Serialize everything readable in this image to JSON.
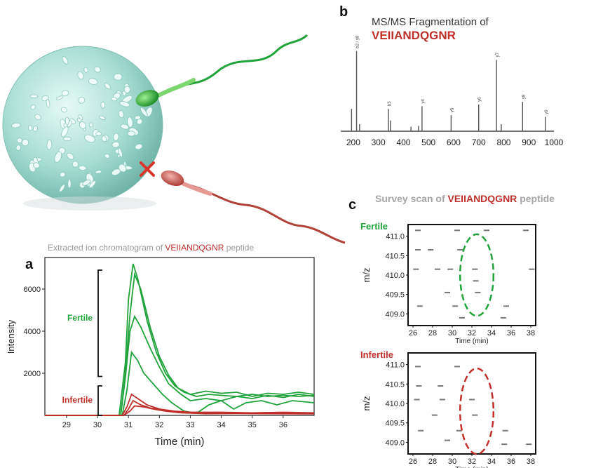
{
  "panels": {
    "a_letter": "a",
    "b_letter": "b",
    "c_letter": "c"
  },
  "titles": {
    "eic_prefix": "Extracted ion chromatogram of",
    "eic_peptide": "VEIIANDQGNR",
    "eic_suffix": "peptide",
    "msms_line1": "MS/MS Fragmentation of",
    "msms_peptide": "VEIIANDQGNR",
    "survey_prefix": "Survey scan of",
    "survey_peptide": "VEIIANDQGNR",
    "survey_suffix": "peptide"
  },
  "groups": {
    "fertile": "Fertile",
    "infertile": "Infertile"
  },
  "colors": {
    "fertile": "#1fa33a",
    "infertile": "#c0302b",
    "peptide_text": "#c0302b",
    "title_gray": "#9a9a9a"
  },
  "chart_data": [
    {
      "id": "a",
      "type": "line",
      "xlabel": "Time (min)",
      "ylabel": "Intensity",
      "xlim": [
        28.3,
        37
      ],
      "ylim": [
        0,
        7500
      ],
      "xticks": [
        29,
        30,
        31,
        32,
        33,
        34,
        35,
        36
      ],
      "yticks": [
        2000,
        4000,
        6000
      ],
      "series": [
        {
          "group": "fertile",
          "points": [
            [
              28.3,
              0
            ],
            [
              30.7,
              0
            ],
            [
              30.9,
              2500
            ],
            [
              31.0,
              5500
            ],
            [
              31.15,
              7200
            ],
            [
              31.3,
              6500
            ],
            [
              31.6,
              4500
            ],
            [
              31.9,
              3000
            ],
            [
              32.2,
              2000
            ],
            [
              32.5,
              1400
            ],
            [
              32.8,
              1100
            ],
            [
              33.2,
              900
            ],
            [
              33.6,
              1000
            ],
            [
              34.0,
              950
            ],
            [
              34.5,
              900
            ],
            [
              35.0,
              1000
            ],
            [
              35.5,
              900
            ],
            [
              36.0,
              950
            ],
            [
              36.5,
              900
            ],
            [
              37,
              950
            ]
          ]
        },
        {
          "group": "fertile",
          "points": [
            [
              28.3,
              0
            ],
            [
              30.75,
              0
            ],
            [
              30.9,
              2000
            ],
            [
              31.05,
              4800
            ],
            [
              31.2,
              6700
            ],
            [
              31.4,
              6000
            ],
            [
              31.7,
              4200
            ],
            [
              32.0,
              2800
            ],
            [
              32.3,
              1900
            ],
            [
              32.6,
              1300
            ],
            [
              33.0,
              1000
            ],
            [
              33.5,
              1150
            ],
            [
              34.0,
              1050
            ],
            [
              34.5,
              1100
            ],
            [
              35.0,
              900
            ],
            [
              35.5,
              1050
            ],
            [
              36.0,
              1000
            ],
            [
              36.5,
              1100
            ],
            [
              37,
              1000
            ]
          ]
        },
        {
          "group": "fertile",
          "points": [
            [
              28.3,
              0
            ],
            [
              30.75,
              0
            ],
            [
              30.9,
              1800
            ],
            [
              31.05,
              4000
            ],
            [
              31.2,
              4700
            ],
            [
              31.4,
              4200
            ],
            [
              31.7,
              3200
            ],
            [
              32.0,
              2300
            ],
            [
              32.3,
              1500
            ],
            [
              32.7,
              1000
            ],
            [
              33.0,
              700
            ],
            [
              33.5,
              800
            ],
            [
              34.0,
              700
            ],
            [
              34.5,
              900
            ],
            [
              35.0,
              800
            ],
            [
              35.5,
              950
            ],
            [
              36.0,
              850
            ],
            [
              36.5,
              1000
            ],
            [
              37,
              900
            ]
          ]
        },
        {
          "group": "fertile",
          "points": [
            [
              28.3,
              0
            ],
            [
              30.8,
              0
            ],
            [
              30.95,
              1200
            ],
            [
              31.1,
              3000
            ],
            [
              31.3,
              2600
            ],
            [
              31.5,
              2000
            ],
            [
              31.8,
              1500
            ],
            [
              32.1,
              1000
            ],
            [
              32.4,
              600
            ],
            [
              32.8,
              200
            ],
            [
              33.2,
              100
            ],
            [
              33.6,
              500
            ],
            [
              34.0,
              700
            ],
            [
              34.4,
              300
            ],
            [
              34.8,
              600
            ],
            [
              35.3,
              700
            ],
            [
              35.8,
              500
            ],
            [
              36.3,
              700
            ],
            [
              37,
              600
            ]
          ]
        },
        {
          "group": "infertile",
          "points": [
            [
              28.3,
              0
            ],
            [
              30.8,
              0
            ],
            [
              30.95,
              400
            ],
            [
              31.1,
              1000
            ],
            [
              31.3,
              800
            ],
            [
              31.6,
              500
            ],
            [
              32.0,
              300
            ],
            [
              32.5,
              200
            ],
            [
              33.0,
              150
            ],
            [
              34.0,
              150
            ],
            [
              35.0,
              120
            ],
            [
              36.0,
              150
            ],
            [
              37,
              120
            ]
          ]
        },
        {
          "group": "infertile",
          "points": [
            [
              28.3,
              0
            ],
            [
              30.85,
              0
            ],
            [
              31.0,
              300
            ],
            [
              31.15,
              700
            ],
            [
              31.4,
              500
            ],
            [
              31.7,
              350
            ],
            [
              32.1,
              250
            ],
            [
              32.6,
              150
            ],
            [
              33.2,
              120
            ],
            [
              34.0,
              100
            ],
            [
              35.0,
              120
            ],
            [
              36.0,
              100
            ],
            [
              37,
              100
            ]
          ]
        },
        {
          "group": "infertile",
          "points": [
            [
              28.3,
              0
            ],
            [
              30.85,
              0
            ],
            [
              31.05,
              200
            ],
            [
              31.2,
              450
            ],
            [
              31.5,
              400
            ],
            [
              31.8,
              300
            ],
            [
              32.2,
              200
            ],
            [
              32.7,
              120
            ],
            [
              33.5,
              80
            ],
            [
              34.5,
              90
            ],
            [
              35.5,
              80
            ],
            [
              37,
              70
            ]
          ]
        }
      ]
    },
    {
      "id": "b",
      "type": "bar",
      "xlim": [
        150,
        1000
      ],
      "xticks": [
        200,
        300,
        400,
        500,
        600,
        700,
        800,
        900,
        1000
      ],
      "peaks": [
        {
          "mz": 193,
          "rel": 0.25
        },
        {
          "mz": 213,
          "rel": 0.9,
          "label": "b2 / y8"
        },
        {
          "mz": 225,
          "rel": 0.08
        },
        {
          "mz": 340,
          "rel": 0.25,
          "label": "b3"
        },
        {
          "mz": 348,
          "rel": 0.12
        },
        {
          "mz": 430,
          "rel": 0.05
        },
        {
          "mz": 460,
          "rel": 0.06
        },
        {
          "mz": 474,
          "rel": 0.28,
          "label": "y4"
        },
        {
          "mz": 590,
          "rel": 0.18,
          "label": "y5"
        },
        {
          "mz": 700,
          "rel": 0.3,
          "label": "y6"
        },
        {
          "mz": 771,
          "rel": 0.8,
          "label": "y7"
        },
        {
          "mz": 790,
          "rel": 0.08
        },
        {
          "mz": 875,
          "rel": 0.33,
          "label": "y8"
        },
        {
          "mz": 966,
          "rel": 0.16,
          "label": "y9"
        }
      ]
    },
    {
      "id": "c_fertile",
      "type": "heatmap",
      "xlabel": "Time (min)",
      "ylabel": "m/z",
      "xlim": [
        25.5,
        38.5
      ],
      "ylim": [
        408.7,
        411.3
      ],
      "xticks": [
        26,
        28,
        30,
        32,
        34,
        36,
        38
      ],
      "yticks": [
        409.0,
        409.5,
        410.0,
        410.5,
        411.0
      ],
      "marks": [
        {
          "t": 26.5,
          "mz": 411.15
        },
        {
          "t": 30.5,
          "mz": 411.15
        },
        {
          "t": 33.5,
          "mz": 411.15
        },
        {
          "t": 37.5,
          "mz": 411.15
        },
        {
          "t": 26.5,
          "mz": 410.65
        },
        {
          "t": 27.8,
          "mz": 410.65
        },
        {
          "t": 30.8,
          "mz": 410.65
        },
        {
          "t": 26.3,
          "mz": 410.15
        },
        {
          "t": 28.5,
          "mz": 410.15
        },
        {
          "t": 29.8,
          "mz": 410.15
        },
        {
          "t": 32.3,
          "mz": 410.15
        },
        {
          "t": 38.1,
          "mz": 410.15
        },
        {
          "t": 32.4,
          "mz": 409.85
        },
        {
          "t": 32.6,
          "mz": 409.55
        },
        {
          "t": 29.5,
          "mz": 409.55
        },
        {
          "t": 26.7,
          "mz": 409.2
        },
        {
          "t": 30.3,
          "mz": 409.2
        },
        {
          "t": 35.5,
          "mz": 409.2
        },
        {
          "t": 31.0,
          "mz": 408.9
        },
        {
          "t": 35.2,
          "mz": 408.9
        }
      ],
      "highlight": {
        "t": 32.5,
        "mz": 410.0,
        "t_radius": 1.7,
        "mz_radius": 1.05,
        "group": "fertile"
      }
    },
    {
      "id": "c_infertile",
      "type": "heatmap",
      "xlabel": "Time (min)",
      "ylabel": "m/z",
      "xlim": [
        25.5,
        38.5
      ],
      "ylim": [
        408.7,
        411.3
      ],
      "xticks": [
        26,
        28,
        30,
        32,
        34,
        36,
        38
      ],
      "yticks": [
        409.0,
        409.5,
        410.0,
        410.5,
        411.0
      ],
      "marks": [
        {
          "t": 26.5,
          "mz": 410.95
        },
        {
          "t": 30.5,
          "mz": 410.95
        },
        {
          "t": 26.6,
          "mz": 410.45
        },
        {
          "t": 28.8,
          "mz": 410.45
        },
        {
          "t": 26.4,
          "mz": 410.1
        },
        {
          "t": 29.0,
          "mz": 410.1
        },
        {
          "t": 32.0,
          "mz": 410.1
        },
        {
          "t": 32.3,
          "mz": 409.7
        },
        {
          "t": 28.2,
          "mz": 409.7
        },
        {
          "t": 26.8,
          "mz": 409.3
        },
        {
          "t": 30.7,
          "mz": 409.3
        },
        {
          "t": 35.4,
          "mz": 409.3
        },
        {
          "t": 29.5,
          "mz": 409.05
        },
        {
          "t": 35.3,
          "mz": 408.95
        },
        {
          "t": 37.8,
          "mz": 408.95
        }
      ],
      "highlight": {
        "t": 32.5,
        "mz": 409.8,
        "t_radius": 1.7,
        "mz_radius": 1.1,
        "group": "infertile"
      }
    }
  ]
}
